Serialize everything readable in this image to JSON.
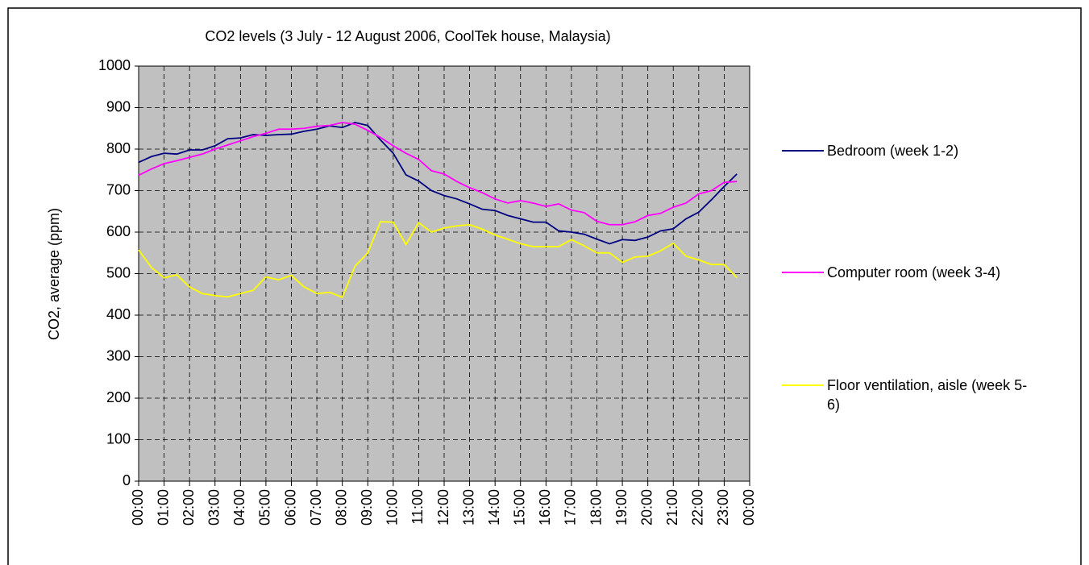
{
  "chart_data": {
    "type": "line",
    "title": "CO2 levels (3 July - 12 August 2006, CoolTek house, Malaysia)",
    "y_label": "CO2, average (ppm)",
    "categories": [
      "00:00",
      null,
      "01:00",
      null,
      "02:00",
      null,
      "03:00",
      null,
      "04:00",
      null,
      "05:00",
      null,
      "06:00",
      null,
      "07:00",
      null,
      "08:00",
      null,
      "09:00",
      null,
      "10:00",
      null,
      "11:00",
      null,
      "12:00",
      null,
      "13:00",
      null,
      "14:00",
      null,
      "15:00",
      null,
      "16:00",
      null,
      "17:00",
      null,
      "18:00",
      null,
      "19:00",
      null,
      "20:00",
      null,
      "21:00",
      null,
      "22:00",
      null,
      "23:00",
      null,
      "00:00"
    ],
    "series": [
      {
        "name": "Bedroom (week 1-2)",
        "color": "#000080",
        "values": [
          768,
          782,
          790,
          788,
          798,
          798,
          808,
          825,
          827,
          835,
          833,
          835,
          836,
          843,
          848,
          856,
          852,
          864,
          857,
          822,
          790,
          738,
          723,
          700,
          688,
          680,
          668,
          655,
          652,
          640,
          632,
          624,
          624,
          603,
          600,
          595,
          583,
          572,
          582,
          580,
          588,
          603,
          608,
          632,
          648,
          678,
          710,
          740,
          null
        ]
      },
      {
        "name": "Computer room (week 3-4)",
        "color": "#ff00ff",
        "values": [
          737,
          752,
          765,
          772,
          780,
          788,
          800,
          810,
          820,
          830,
          838,
          848,
          848,
          850,
          855,
          857,
          864,
          860,
          845,
          828,
          808,
          790,
          775,
          748,
          740,
          722,
          707,
          695,
          680,
          670,
          676,
          670,
          662,
          668,
          653,
          647,
          626,
          618,
          618,
          625,
          640,
          645,
          660,
          670,
          692,
          700,
          720,
          722,
          null
        ]
      },
      {
        "name": "Floor ventilation, aisle (week 5-6)",
        "color": "#ffff00",
        "values": [
          557,
          515,
          490,
          497,
          468,
          452,
          447,
          444,
          452,
          460,
          492,
          485,
          496,
          468,
          452,
          455,
          443,
          518,
          550,
          625,
          624,
          570,
          623,
          600,
          610,
          615,
          618,
          607,
          593,
          583,
          572,
          565,
          565,
          565,
          582,
          567,
          550,
          550,
          527,
          540,
          542,
          555,
          573,
          542,
          533,
          522,
          522,
          490,
          null
        ]
      }
    ],
    "ylim": [
      0,
      1000
    ],
    "yticks": [
      0,
      100,
      200,
      300,
      400,
      500,
      600,
      700,
      800,
      900,
      1000
    ],
    "grid": true,
    "legend": "right",
    "plot_background": "#c0c0c0"
  }
}
